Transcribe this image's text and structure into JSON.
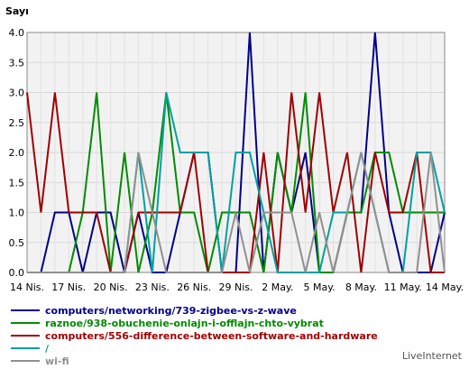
{
  "chart_data": {
    "type": "line",
    "title": "Sayı",
    "categories": [
      "14 Nis.",
      null,
      null,
      "17 Nis.",
      null,
      null,
      "20 Nis.",
      null,
      null,
      "23 Nis.",
      null,
      null,
      "26 Nis.",
      null,
      null,
      "29 Nis.",
      null,
      null,
      "2 May.",
      null,
      null,
      "5 May.",
      null,
      null,
      "8 May.",
      null,
      null,
      "11 May.",
      null,
      null,
      "14 May."
    ],
    "series": [
      {
        "name": "computers/networking/739-zigbee-vs-z-wave",
        "color": "#00008b",
        "values": [
          0,
          0,
          1,
          1,
          0,
          1,
          1,
          0,
          1,
          0,
          0,
          1,
          2,
          2,
          0,
          0,
          4,
          0,
          2,
          1,
          2,
          0,
          0,
          1,
          1,
          4,
          1,
          0,
          0,
          0,
          1
        ]
      },
      {
        "name": "raznoe/938-obuchenie-onlajn-i-offlajn-chto-vybrat",
        "color": "#008c00",
        "values": [
          0,
          0,
          0,
          0,
          1,
          3,
          0,
          2,
          0,
          1,
          3,
          1,
          1,
          0,
          1,
          1,
          1,
          0,
          2,
          1,
          3,
          0,
          0,
          1,
          1,
          2,
          2,
          1,
          1,
          1,
          1
        ]
      },
      {
        "name": "computers/556-difference-between-software-and-hardware",
        "color": "#a00000",
        "values": [
          3,
          1,
          3,
          1,
          1,
          1,
          0,
          0,
          1,
          1,
          1,
          1,
          2,
          0,
          0,
          0,
          0,
          2,
          0,
          3,
          1,
          3,
          1,
          2,
          0,
          2,
          1,
          1,
          2,
          0,
          0
        ]
      },
      {
        "name": "/",
        "color": "#00a0a0",
        "values": [
          0,
          0,
          0,
          0,
          0,
          0,
          0,
          0,
          2,
          0,
          3,
          2,
          2,
          2,
          0,
          2,
          2,
          1,
          0,
          0,
          0,
          0,
          1,
          1,
          2,
          1,
          0,
          0,
          2,
          2,
          1
        ]
      },
      {
        "name": "wi-fi",
        "color": "#909090",
        "values": [
          0,
          0,
          0,
          0,
          0,
          0,
          0,
          0,
          2,
          1,
          0,
          0,
          0,
          0,
          0,
          1,
          0,
          1,
          1,
          1,
          0,
          1,
          0,
          1,
          2,
          1,
          0,
          0,
          0,
          2,
          0
        ]
      }
    ],
    "ylim": [
      0,
      4
    ],
    "yticks": [
      {
        "value": 0,
        "label": "0.0"
      },
      {
        "value": 0.5,
        "label": "0.5"
      },
      {
        "value": 1,
        "label": "1.0"
      },
      {
        "value": 1.5,
        "label": "1.5"
      },
      {
        "value": 2,
        "label": "2.0"
      },
      {
        "value": 2.5,
        "label": "2.5"
      },
      {
        "value": 3,
        "label": "3.0"
      },
      {
        "value": 3.5,
        "label": "3.5"
      },
      {
        "value": 4,
        "label": "4.0"
      }
    ],
    "grid": true,
    "footer": "LiveInternet"
  }
}
